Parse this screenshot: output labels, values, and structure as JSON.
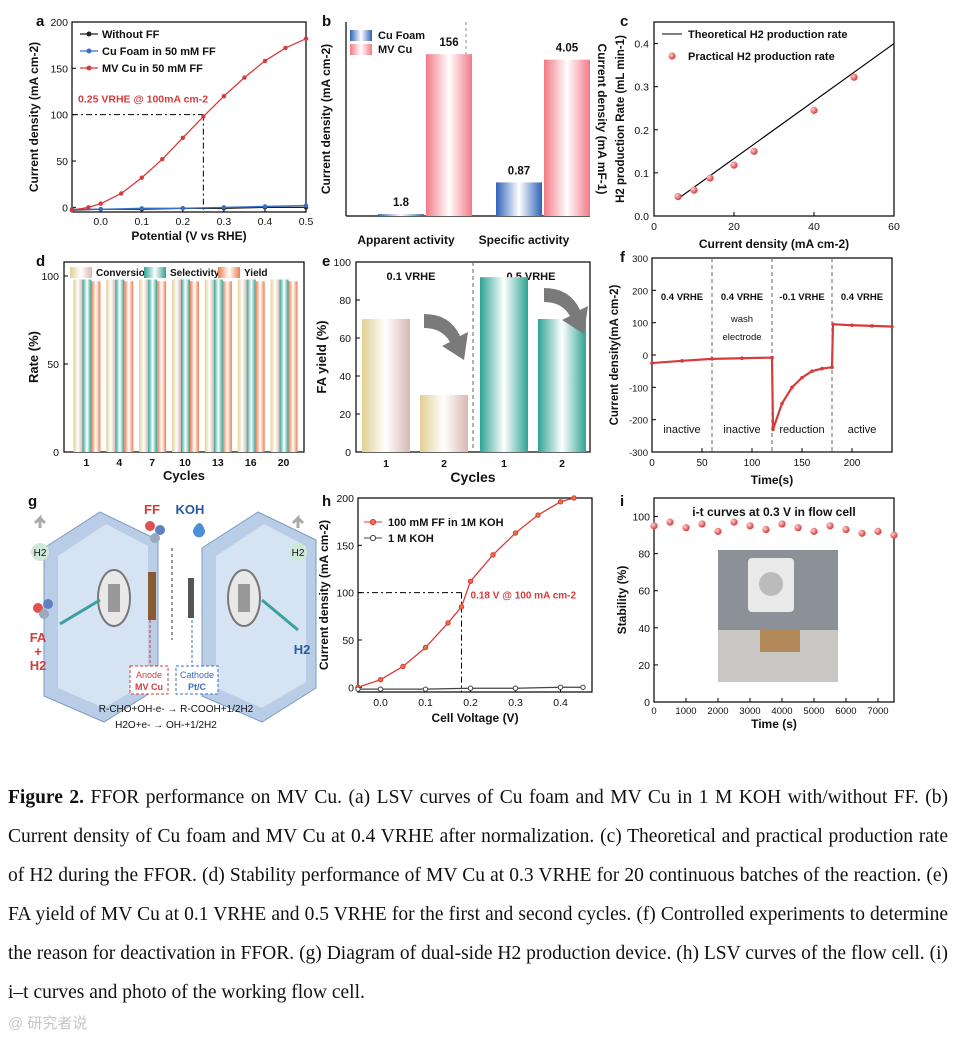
{
  "colors": {
    "red": "#d63b3b",
    "blue": "#3a6fc4",
    "dark": "#222222",
    "teal": "#3fb3a3",
    "cream": "#e6d6a6",
    "orange": "#f0906a",
    "pink": "#f29aa0"
  },
  "panel_labels": [
    "a",
    "b",
    "c",
    "d",
    "e",
    "f",
    "g",
    "h",
    "i"
  ],
  "chart_data": [
    {
      "id": "a",
      "type": "line",
      "xlabel": "Potential (V vs RHE)",
      "ylabel": "Current density (mA cm-2)",
      "xlim": [
        -0.07,
        0.5
      ],
      "ylim": [
        -5,
        200
      ],
      "xticks": [
        0.0,
        0.1,
        0.2,
        0.3,
        0.4,
        0.5
      ],
      "yticks": [
        0,
        50,
        100,
        150,
        200
      ],
      "annotation": "0.25 VRHE @ 100mA cm-2",
      "annotation_x": 0.25,
      "annotation_y": 100,
      "series": [
        {
          "name": "Without FF",
          "color": "#222222",
          "x": [
            -0.07,
            0.0,
            0.1,
            0.2,
            0.3,
            0.4,
            0.5
          ],
          "y": [
            -3,
            -2,
            -2,
            -1,
            -1,
            0,
            0
          ]
        },
        {
          "name": "Cu Foam in 50 mM FF",
          "color": "#3a6fc4",
          "x": [
            -0.07,
            0.0,
            0.1,
            0.2,
            0.3,
            0.4,
            0.5
          ],
          "y": [
            -2,
            -2,
            -1,
            -1,
            0,
            1,
            2
          ]
        },
        {
          "name": "MV Cu in 50 mM FF",
          "color": "#d63b3b",
          "x": [
            -0.07,
            -0.03,
            0.0,
            0.05,
            0.1,
            0.15,
            0.2,
            0.25,
            0.3,
            0.35,
            0.4,
            0.45,
            0.5
          ],
          "y": [
            -3,
            0,
            4,
            15,
            32,
            52,
            75,
            98,
            120,
            140,
            158,
            172,
            182
          ]
        }
      ]
    },
    {
      "id": "b",
      "type": "bar",
      "ylabel": "Current density (mA cm-2)",
      "ylabel2": "Current density (mA mF-1)",
      "categories": [
        "Apparent activity",
        "Specific activity"
      ],
      "series": [
        {
          "name": "Cu Foam",
          "values": [
            1.8,
            0.87
          ]
        },
        {
          "name": "MV Cu",
          "values": [
            156,
            4.05
          ]
        }
      ],
      "labels": [
        "1.8",
        "156",
        "0.87",
        "4.05"
      ]
    },
    {
      "id": "c",
      "type": "scatter",
      "xlabel": "Current density (mA cm-2)",
      "ylabel": "H2 production Rate (mL min-1)",
      "xlim": [
        0,
        60
      ],
      "ylim": [
        0,
        0.45
      ],
      "xticks": [
        0,
        20,
        40,
        60
      ],
      "yticks": [
        0.0,
        0.1,
        0.2,
        0.3,
        0.4
      ],
      "series": [
        {
          "name": "Theoretical H2 production rate",
          "x": [
            6,
            60
          ],
          "y": [
            0.04,
            0.4
          ]
        },
        {
          "name": "Practical H2 production rate",
          "x": [
            6,
            10,
            14,
            20,
            25,
            40,
            50
          ],
          "y": [
            0.045,
            0.06,
            0.088,
            0.118,
            0.15,
            0.245,
            0.322
          ]
        }
      ]
    },
    {
      "id": "d",
      "type": "bar",
      "xlabel": "Cycles",
      "ylabel": "Rate (%)",
      "ylim": [
        0,
        100
      ],
      "yticks": [
        0,
        50,
        100
      ],
      "categories": [
        "1",
        "4",
        "7",
        "10",
        "13",
        "16",
        "20"
      ],
      "series": [
        {
          "name": "Conversion",
          "values": [
            98,
            98,
            98,
            98,
            98,
            98,
            98
          ]
        },
        {
          "name": "Selectivity",
          "values": [
            98,
            98,
            98,
            98,
            98,
            98,
            98
          ]
        },
        {
          "name": "Yield",
          "values": [
            97,
            97,
            97,
            97,
            97,
            97,
            97
          ]
        }
      ]
    },
    {
      "id": "e",
      "type": "bar",
      "xlabel": "Cycles",
      "ylabel": "FA yield (%)",
      "ylim": [
        0,
        100
      ],
      "yticks": [
        0,
        20,
        40,
        60,
        80,
        100
      ],
      "groups": [
        "0.1 VRHE",
        "0.5 VRHE"
      ],
      "categories": [
        "1",
        "2",
        "1",
        "2"
      ],
      "values": [
        70,
        30,
        92,
        70
      ]
    },
    {
      "id": "f",
      "type": "line",
      "xlabel": "Time(s)",
      "ylabel": "Current density(mA cm-2)",
      "xlim": [
        0,
        240
      ],
      "ylim": [
        -300,
        300
      ],
      "xticks": [
        0,
        50,
        100,
        150,
        200
      ],
      "yticks": [
        -300,
        -200,
        -100,
        0,
        100,
        200,
        300
      ],
      "segment_labels": [
        "0.4 VRHE",
        "0.4 VRHE",
        "-0.1 VRHE",
        "0.4 VRHE"
      ],
      "wash_label": "wash electrode",
      "state_labels": [
        "inactive",
        "inactive",
        "reduction",
        "active"
      ],
      "x": [
        0,
        30,
        60,
        90,
        120,
        121,
        130,
        140,
        150,
        160,
        170,
        180,
        181,
        200,
        220,
        240
      ],
      "y": [
        -25,
        -18,
        -12,
        -10,
        -8,
        -230,
        -150,
        -100,
        -70,
        -50,
        -42,
        -38,
        95,
        92,
        90,
        88
      ]
    },
    {
      "id": "h",
      "type": "line",
      "xlabel": "Cell Voltage (V)",
      "ylabel": "Current density (mA cm-2)",
      "xlim": [
        -0.05,
        0.47
      ],
      "ylim": [
        -5,
        200
      ],
      "xticks": [
        0.0,
        0.1,
        0.2,
        0.3,
        0.4
      ],
      "yticks": [
        0,
        50,
        100,
        150,
        200
      ],
      "annotation": "0.18 V @ 100 mA cm-2",
      "series": [
        {
          "name": "100 mM FF in 1M KOH",
          "x": [
            -0.05,
            0.0,
            0.05,
            0.1,
            0.15,
            0.18,
            0.2,
            0.25,
            0.3,
            0.35,
            0.4,
            0.43
          ],
          "y": [
            0,
            8,
            22,
            42,
            68,
            85,
            112,
            140,
            163,
            182,
            196,
            200
          ]
        },
        {
          "name": "1 M KOH",
          "x": [
            -0.05,
            0.0,
            0.1,
            0.2,
            0.3,
            0.4,
            0.45
          ],
          "y": [
            -2,
            -2,
            -2,
            -1,
            -1,
            0,
            0
          ]
        }
      ]
    },
    {
      "id": "i",
      "type": "scatter",
      "xlabel": "Time (s)",
      "ylabel": "Stability (%)",
      "title": "i-t curves at 0.3 V in flow cell",
      "xlim": [
        0,
        7500
      ],
      "ylim": [
        0,
        110
      ],
      "xticks": [
        0,
        1000,
        2000,
        3000,
        4000,
        5000,
        6000,
        7000
      ],
      "yticks": [
        0,
        20,
        40,
        60,
        80,
        100
      ],
      "x": [
        0,
        500,
        1000,
        1500,
        2000,
        2500,
        3000,
        3500,
        4000,
        4500,
        5000,
        5500,
        6000,
        6500,
        7000,
        7500
      ],
      "y": [
        95,
        97,
        94,
        96,
        92,
        97,
        95,
        93,
        96,
        94,
        92,
        95,
        93,
        91,
        92,
        90
      ]
    }
  ],
  "panel_g": {
    "ff": "FF",
    "koh": "KOH",
    "h2_left": "H2",
    "h2_right": "H2",
    "h2_out": "H2",
    "fa_out": "FA + H2",
    "anode": "Anode",
    "anode_mat": "MV Cu",
    "cathode": "Cathode",
    "cathode_mat": "Pt/C",
    "eq1": "R-CHO+OH-e- → R-COOH+1/2H2",
    "eq2": "H2O+e- → OH-+1/2H2"
  },
  "caption": {
    "figure": "Figure 2.",
    "text": "FFOR performance on MV Cu. (a) LSV curves of Cu foam and MV Cu in 1 M KOH with/without FF. (b) Current density of Cu foam and MV Cu at 0.4 VRHE after normalization. (c) Theoretical and practical production rate of H2 during the FFOR. (d) Stability performance of MV Cu at 0.3 VRHE for 20 continuous batches of the reaction. (e) FA yield of MV Cu at 0.1 VRHE and 0.5 VRHE for the first and second cycles. (f) Controlled experiments to determine the reason for deactivation in FFOR. (g) Diagram of dual-side H2 production device. (h) LSV curves of the flow cell. (i) i–t curves and photo of the working flow cell."
  },
  "watermark": "@ 研究者说"
}
